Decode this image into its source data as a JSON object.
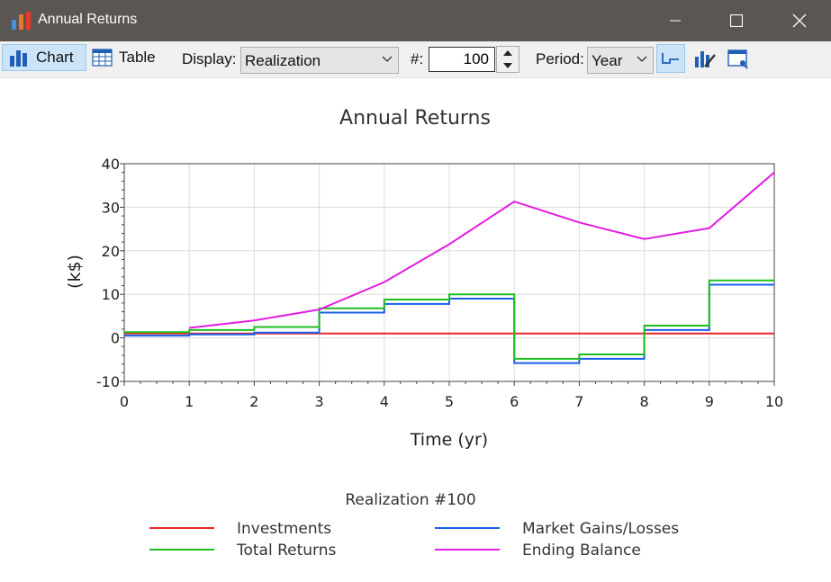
{
  "window": {
    "title": "Annual Returns",
    "app_icon": "bar-chart-icon",
    "controls": [
      "minimize-icon",
      "maximize-icon",
      "close-icon"
    ]
  },
  "toolbar": {
    "chart_label": "Chart",
    "table_label": "Table",
    "display_label": "Display:",
    "display_value": "Realization",
    "number_label": "#:",
    "number_value": "100",
    "period_label": "Period:",
    "period_value": "Year",
    "icons": [
      "step-line-icon",
      "chart-edit-icon",
      "window-settings-icon"
    ]
  },
  "colors": {
    "investments": "#e8262b",
    "market": "#1a5fe8",
    "total": "#1fbe1f",
    "ending": "#e21ee2",
    "titlebar": "#5a5652",
    "active": "#cce4f7"
  },
  "chart_data": {
    "type": "line",
    "title": "Annual Returns",
    "xlabel": "Time (yr)",
    "ylabel": "(k$)",
    "xlim": [
      0,
      10
    ],
    "ylim": [
      -10,
      40
    ],
    "x_ticks": [
      0,
      1,
      2,
      3,
      4,
      5,
      6,
      7,
      8,
      9,
      10
    ],
    "y_ticks": [
      -10,
      0,
      10,
      20,
      30,
      40
    ],
    "grid": true,
    "legend_title": "Realization #100",
    "legend_position": "bottom",
    "series": [
      {
        "name": "Investments",
        "key": "investments",
        "style": "step",
        "x": [
          0,
          10
        ],
        "y": [
          1,
          1
        ]
      },
      {
        "name": "Market Gains/Losses",
        "key": "market",
        "style": "step",
        "x": [
          0,
          1,
          2,
          3,
          4,
          5,
          6,
          7,
          8,
          9,
          10
        ],
        "y": [
          0.5,
          0.8,
          1.2,
          5.8,
          7.8,
          9.0,
          -5.8,
          -4.8,
          1.8,
          12.2,
          12.2
        ]
      },
      {
        "name": "Total Returns",
        "key": "total",
        "style": "step",
        "x": [
          0,
          1,
          2,
          3,
          4,
          5,
          6,
          7,
          8,
          9,
          10
        ],
        "y": [
          1.3,
          1.8,
          2.5,
          6.8,
          8.8,
          10.0,
          -4.8,
          -3.8,
          2.8,
          13.2,
          13.2
        ]
      },
      {
        "name": "Ending Balance",
        "key": "ending",
        "style": "line",
        "x": [
          1,
          2,
          3,
          4,
          5,
          6,
          7,
          8,
          9,
          10
        ],
        "y": [
          2.3,
          4.0,
          6.5,
          12.8,
          21.5,
          31.3,
          26.5,
          22.7,
          25.2,
          38.0
        ]
      }
    ]
  }
}
